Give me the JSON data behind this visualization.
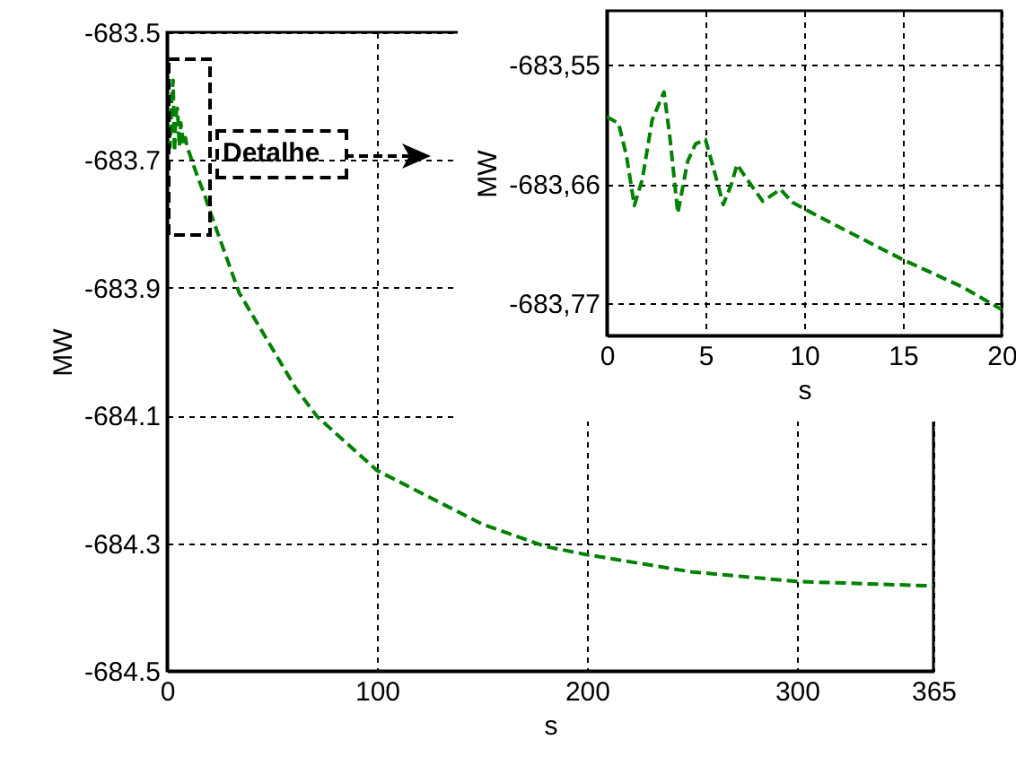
{
  "chart_data": [
    {
      "type": "line",
      "xlabel": "s",
      "ylabel": "MW",
      "color": "#008000",
      "line_style": "dashed",
      "grid": true,
      "annotations": [
        "Detalhe"
      ],
      "x": [
        0,
        0.6,
        1,
        1.4,
        1.8,
        2.3,
        2.9,
        3.2,
        3.6,
        4.1,
        4.5,
        5,
        5.4,
        5.9,
        6.3,
        6.6,
        7,
        7.9,
        8.8,
        9.4,
        10,
        12,
        15,
        18,
        20,
        34.4,
        61.5,
        71.6,
        100,
        150,
        180,
        200,
        250,
        300,
        365
      ],
      "values": [
        -683.598,
        -683.604,
        -683.634,
        -683.68,
        -683.656,
        -683.601,
        -683.575,
        -683.617,
        -683.687,
        -683.639,
        -683.623,
        -683.619,
        -683.645,
        -683.679,
        -683.661,
        -683.642,
        -683.653,
        -683.676,
        -683.665,
        -683.677,
        -683.683,
        -683.702,
        -683.73,
        -683.755,
        -683.776,
        -683.908,
        -684.058,
        -684.102,
        -684.186,
        -684.27,
        -684.305,
        -684.318,
        -684.345,
        -684.36,
        -684.367
      ],
      "xlim": [
        0,
        365
      ],
      "xticks": [
        0,
        100,
        200,
        300,
        365
      ],
      "ylim": [
        -684.5,
        -683.5
      ],
      "yticks": [
        -684.5,
        -684.3,
        -684.1,
        -683.9,
        -683.7,
        -683.5
      ]
    },
    {
      "type": "line",
      "xlabel": "s",
      "ylabel": "MW",
      "color": "#008000",
      "line_style": "dashed",
      "grid": true,
      "x": [
        0,
        0.6,
        1,
        1.4,
        1.8,
        2.3,
        2.9,
        3.2,
        3.6,
        4.1,
        4.5,
        5,
        5.4,
        5.9,
        6.3,
        6.6,
        7,
        7.9,
        8.8,
        9.4,
        10,
        12,
        15,
        18,
        20
      ],
      "values": [
        -683.598,
        -683.604,
        -683.634,
        -683.68,
        -683.656,
        -683.601,
        -683.575,
        -683.617,
        -683.687,
        -683.639,
        -683.623,
        -683.619,
        -683.645,
        -683.679,
        -683.661,
        -683.642,
        -683.653,
        -683.676,
        -683.665,
        -683.677,
        -683.683,
        -683.702,
        -683.73,
        -683.755,
        -683.776
      ],
      "xlim": [
        0,
        20
      ],
      "xticks": [
        0,
        5,
        10,
        15,
        20
      ],
      "ylim": [
        -683.8,
        -683.5
      ],
      "yticks": [
        {
          "value": -683.77,
          "label": "-683,77"
        },
        {
          "value": -683.66,
          "label": "-683,66"
        },
        {
          "value": -683.55,
          "label": "-683,55"
        }
      ]
    }
  ]
}
